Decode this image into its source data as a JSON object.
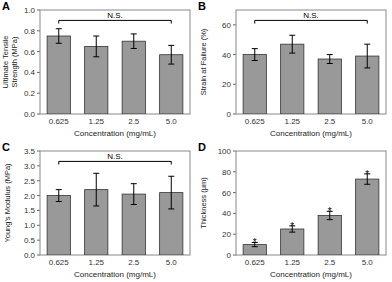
{
  "chart_data": [
    {
      "type": "bar",
      "title": "A",
      "categories": [
        "0.625",
        "1.25",
        "2.5",
        "5.0"
      ],
      "values": [
        0.75,
        0.65,
        0.7,
        0.57
      ],
      "errors": [
        0.07,
        0.1,
        0.07,
        0.09
      ],
      "xlabel": "Concentration (mg/mL)",
      "ylabel": "Ultimate Tensile\nStrength (MPa)",
      "ylim": [
        0,
        1.0
      ],
      "yticks": [
        {
          "value": 0.0,
          "label": "0.0"
        },
        0.2,
        0.4,
        0.6,
        0.8,
        {
          "value": 1.0,
          "label": "1.0"
        }
      ],
      "color": "#999999",
      "grid": false,
      "annotations": [
        {
          "text": "N.S.",
          "from": "0.625",
          "to": "5.0"
        }
      ]
    },
    {
      "type": "bar",
      "title": "B",
      "categories": [
        "0.625",
        "1.25",
        "2.5",
        "5.0"
      ],
      "values": [
        40,
        47,
        37,
        39
      ],
      "errors": [
        4,
        6,
        3,
        8
      ],
      "xlabel": "Concentration (mg/mL)",
      "ylabel": "Strain at Failure (%)",
      "ylim": [
        0,
        70
      ],
      "yticks": [
        0,
        20,
        40,
        60
      ],
      "color": "#999999",
      "grid": false,
      "annotations": [
        {
          "text": "N.S.",
          "from": "0.625",
          "to": "5.0"
        }
      ]
    },
    {
      "type": "bar",
      "title": "C",
      "categories": [
        "0.625",
        "1.25",
        "2.5",
        "5.0"
      ],
      "values": [
        2.0,
        2.2,
        2.05,
        2.1
      ],
      "errors": [
        0.2,
        0.55,
        0.35,
        0.55
      ],
      "xlabel": "Concentration (mg/mL)",
      "ylabel": "Young's Modulus (MPa)",
      "ylim": [
        0,
        3.5
      ],
      "yticks": [
        {
          "value": 0.0,
          "label": "0.0"
        },
        0.5,
        {
          "value": 1.0,
          "label": "1.0"
        },
        1.5,
        {
          "value": 2.0,
          "label": "2.0"
        },
        2.5,
        {
          "value": 3.0,
          "label": "3.0"
        },
        3.5
      ],
      "color": "#999999",
      "grid": false,
      "annotations": [
        {
          "text": "N.S.",
          "from": "0.625",
          "to": "5.0"
        }
      ]
    },
    {
      "type": "bar",
      "title": "D",
      "categories": [
        "0.625",
        "1.25",
        "2.5",
        "5.0"
      ],
      "values": [
        10,
        25,
        38,
        73
      ],
      "errors": [
        2,
        3,
        4,
        5
      ],
      "xlabel": "Concentration (mg/mL)",
      "ylabel": "Thickness (μm)",
      "ylim": [
        0,
        100
      ],
      "yticks": [
        0,
        20,
        40,
        60,
        80,
        100
      ],
      "color": "#999999",
      "grid": false,
      "annotations": [
        {
          "text": "*",
          "category": "0.625"
        },
        {
          "text": "*",
          "category": "1.25"
        },
        {
          "text": "*",
          "category": "2.5"
        },
        {
          "text": "*",
          "category": "5.0"
        }
      ]
    }
  ]
}
